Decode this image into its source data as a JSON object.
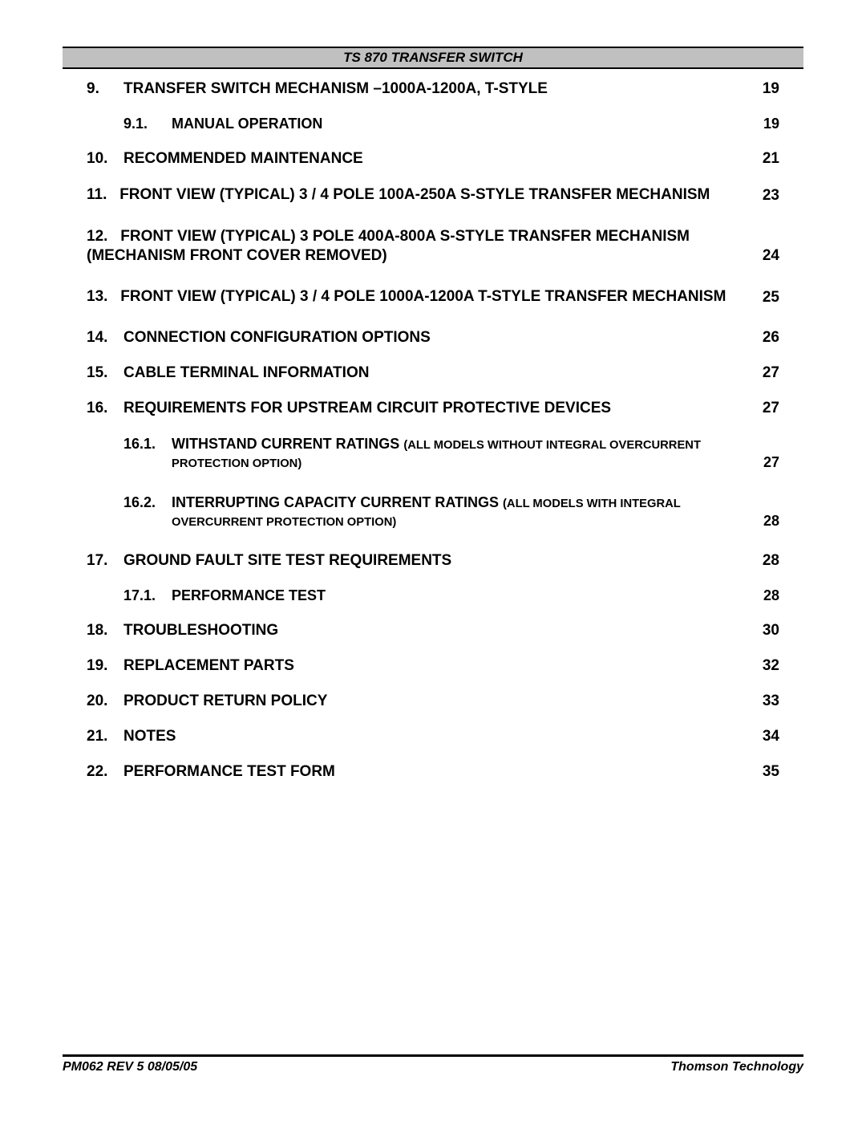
{
  "header": {
    "title": "TS 870  TRANSFER  SWITCH"
  },
  "toc": [
    {
      "level": 1,
      "num": "9.",
      "text": "TRANSFER SWITCH MECHANISM –1000A-1200A, T-STYLE",
      "page": "19"
    },
    {
      "level": 2,
      "num": "9.1.",
      "text": "MANUAL OPERATION",
      "page": "19"
    },
    {
      "level": 1,
      "num": "10.",
      "text": "RECOMMENDED MAINTENANCE",
      "page": "21"
    },
    {
      "level": 1,
      "num": "11.",
      "text": "FRONT VIEW (TYPICAL) 3 / 4 POLE 100A-250A S-STYLE TRANSFER MECHANISM",
      "page": "23",
      "wrap": true
    },
    {
      "level": 1,
      "num": "12.",
      "text": "FRONT VIEW (TYPICAL) 3 POLE 400A-800A S-STYLE TRANSFER MECHANISM (MECHANISM FRONT COVER REMOVED)",
      "page": "24",
      "wrap": true
    },
    {
      "level": 1,
      "num": "13.",
      "text": "FRONT VIEW (TYPICAL) 3 / 4 POLE 1000A-1200A T-STYLE TRANSFER MECHANISM",
      "page": "25",
      "wrap": true
    },
    {
      "level": 1,
      "num": "14.",
      "text": "CONNECTION CONFIGURATION OPTIONS",
      "page": "26"
    },
    {
      "level": 1,
      "num": "15.",
      "text": "CABLE TERMINAL INFORMATION",
      "page": "27"
    },
    {
      "level": 1,
      "num": "16.",
      "text": "REQUIREMENTS FOR UPSTREAM CIRCUIT PROTECTIVE DEVICES",
      "page": "27"
    },
    {
      "level": 2,
      "num": "16.1.",
      "text_main": "WITHSTAND CURRENT RATINGS ",
      "text_small": "(ALL MODELS WITHOUT INTEGRAL OVERCURRENT PROTECTION OPTION)",
      "page": "27",
      "wrap": true,
      "mixed": true
    },
    {
      "level": 2,
      "num": "16.2.",
      "text_main": "INTERRUPTING CAPACITY CURRENT RATINGS ",
      "text_small": "(ALL MODELS WITH INTEGRAL OVERCURRENT PROTECTION OPTION)",
      "page": "28",
      "wrap": true,
      "mixed": true
    },
    {
      "level": 1,
      "num": "17.",
      "text": "GROUND FAULT SITE TEST REQUIREMENTS",
      "page": "28"
    },
    {
      "level": 2,
      "num": "17.1.",
      "text": "PERFORMANCE TEST",
      "page": "28"
    },
    {
      "level": 1,
      "num": "18.",
      "text": "TROUBLESHOOTING",
      "page": "30"
    },
    {
      "level": 1,
      "num": "19.",
      "text": "REPLACEMENT PARTS",
      "page": "32"
    },
    {
      "level": 1,
      "num": "20.",
      "text": "PRODUCT RETURN POLICY",
      "page": "33"
    },
    {
      "level": 1,
      "num": "21.",
      "text": "NOTES",
      "page": "34"
    },
    {
      "level": 1,
      "num": "22.",
      "text": "PERFORMANCE TEST FORM",
      "page": "35"
    }
  ],
  "footer": {
    "left": "PM062  REV 5  08/05/05",
    "right": "Thomson Technology"
  }
}
